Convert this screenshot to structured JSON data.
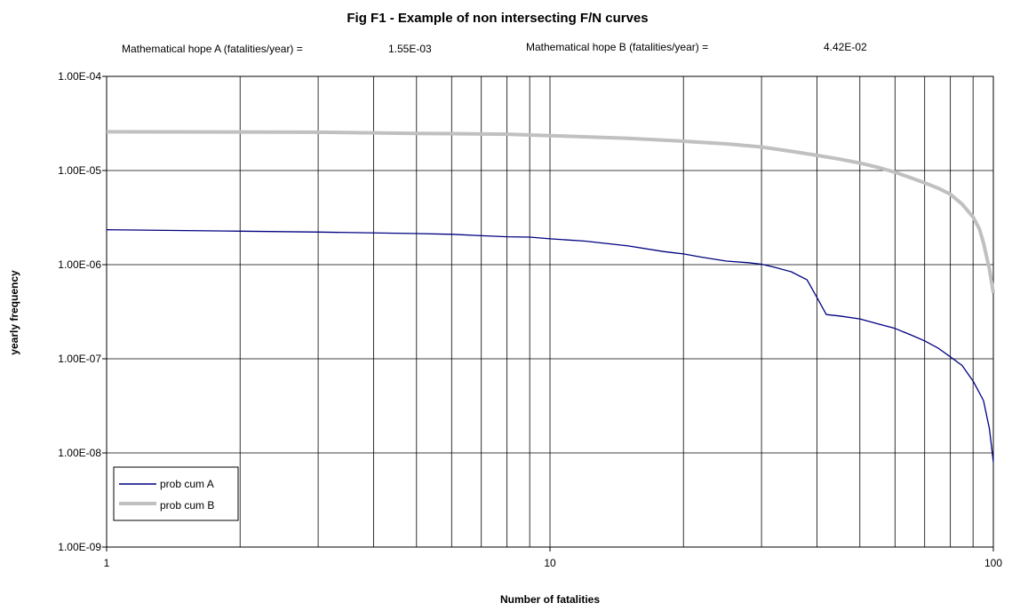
{
  "header": {
    "hope_a_label": "Mathematical hope A (fatalities/year) =",
    "hope_a_value": "1.55E-03",
    "hope_b_label": "Mathematical hope B (fatalities/year) =",
    "hope_b_value": "4.42E-02"
  },
  "chart_data": {
    "type": "line",
    "title": "Fig F1 - Example of non intersecting F/N curves",
    "xlabel": "Number of fatalities",
    "ylabel": "yearly frequency",
    "x_scale": "log",
    "y_scale": "log",
    "xlim": [
      1,
      100
    ],
    "ylim": [
      1e-09,
      0.0001
    ],
    "x_ticks": [
      1,
      10,
      100
    ],
    "x_tick_labels": [
      "1",
      "10",
      "100"
    ],
    "y_ticks": [
      1e-09,
      1e-08,
      1e-07,
      1e-06,
      1e-05,
      0.0001
    ],
    "y_tick_labels": [
      "1.00E-09",
      "1.00E-08",
      "1.00E-07",
      "1.00E-06",
      "1.00E-05",
      "1.00E-04"
    ],
    "grid": true,
    "legend_position": "bottom-left",
    "series": [
      {
        "name": "prob cum A",
        "color": "#000080",
        "x": [
          1,
          2,
          3,
          5,
          6,
          7,
          8,
          9,
          10,
          12,
          15,
          18,
          20,
          22,
          25,
          28,
          30,
          32,
          35,
          38,
          40,
          42,
          45,
          50,
          55,
          60,
          65,
          70,
          75,
          80,
          85,
          90,
          92,
          95,
          98,
          100
        ],
        "y": [
          2.35e-06,
          2.27e-06,
          2.22e-06,
          2.14e-06,
          2.1e-06,
          2.03e-06,
          1.98e-06,
          1.96e-06,
          1.88e-06,
          1.78e-06,
          1.58e-06,
          1.38e-06,
          1.3e-06,
          1.2e-06,
          1.09e-06,
          1.05e-06,
          1.01e-06,
          9.4e-07,
          8.4e-07,
          6.9e-07,
          4.5e-07,
          2.95e-07,
          2.85e-07,
          2.65e-07,
          2.35e-07,
          2.1e-07,
          1.8e-07,
          1.55e-07,
          1.3e-07,
          1.05e-07,
          8.5e-08,
          5.8e-08,
          4.8e-08,
          3.6e-08,
          1.8e-08,
          8e-09
        ]
      },
      {
        "name": "prob cum B",
        "color": "#c0c0c0",
        "x": [
          1,
          3,
          5,
          8,
          10,
          15,
          20,
          25,
          30,
          35,
          40,
          45,
          50,
          55,
          60,
          65,
          70,
          75,
          80,
          85,
          90,
          93,
          95,
          98,
          100
        ],
        "y": [
          2.58e-05,
          2.55e-05,
          2.48e-05,
          2.43e-05,
          2.35e-05,
          2.2e-05,
          2.05e-05,
          1.92e-05,
          1.78e-05,
          1.6e-05,
          1.45e-05,
          1.32e-05,
          1.2e-05,
          1.08e-05,
          9.6e-06,
          8.4e-06,
          7.4e-06,
          6.5e-06,
          5.6e-06,
          4.4e-06,
          3.2e-06,
          2.4e-06,
          1.7e-06,
          9e-07,
          5e-07
        ]
      }
    ]
  }
}
